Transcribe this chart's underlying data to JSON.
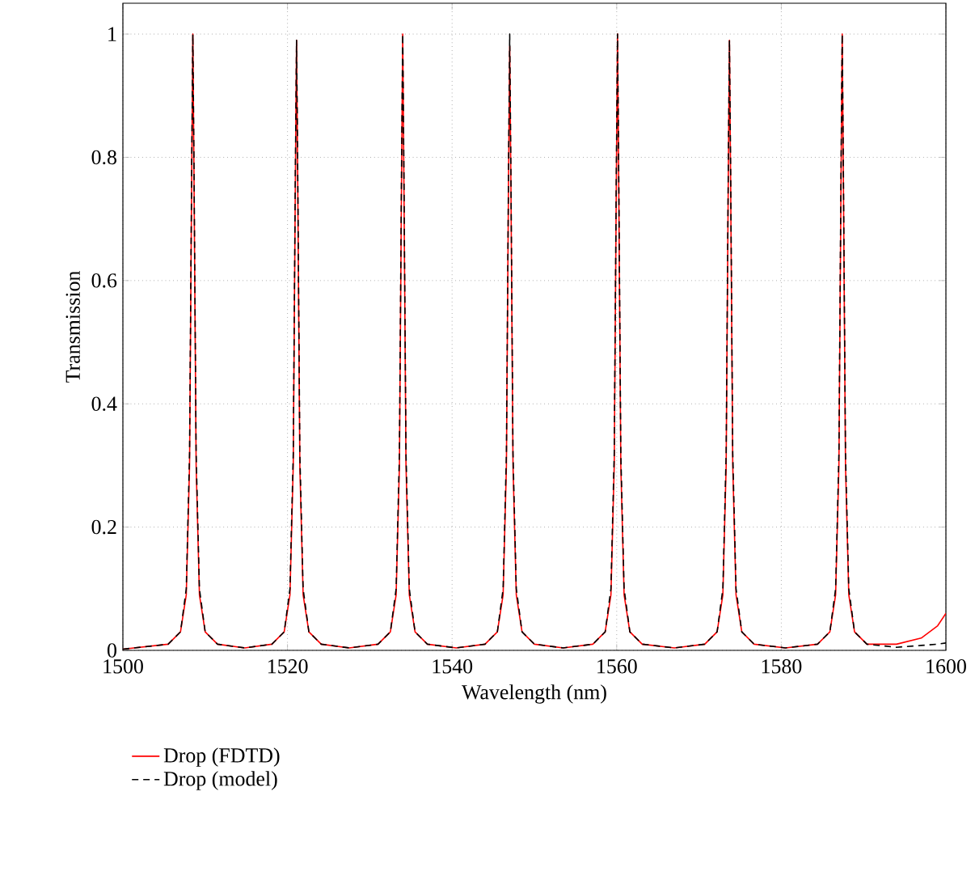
{
  "chart_data": {
    "type": "line",
    "xlabel": "Wavelength (nm)",
    "ylabel": "Transmission",
    "xlim": [
      1500,
      1600
    ],
    "ylim": [
      0,
      1.05
    ],
    "xticks": [
      1500,
      1520,
      1540,
      1560,
      1580,
      1600
    ],
    "yticks": [
      0,
      0.2,
      0.4,
      0.6,
      0.8,
      1
    ],
    "grid": true,
    "legend": "bottom left",
    "marker": "none",
    "x": [
      1500,
      1505.5,
      1507,
      1507.7,
      1508.1,
      1508.35,
      1508.5,
      1508.65,
      1508.9,
      1509.3,
      1510,
      1511.5,
      1514.8,
      1518.1,
      1519.6,
      1520.3,
      1520.7,
      1520.95,
      1521.1,
      1521.25,
      1521.5,
      1521.9,
      1522.6,
      1524.1,
      1527.5,
      1531,
      1532.5,
      1533.2,
      1533.6,
      1533.85,
      1534,
      1534.15,
      1534.4,
      1534.8,
      1535.5,
      1537,
      1540.5,
      1544,
      1545.5,
      1546.2,
      1546.6,
      1546.85,
      1547,
      1547.15,
      1547.4,
      1547.8,
      1548.5,
      1550,
      1553.5,
      1557.1,
      1558.6,
      1559.3,
      1559.7,
      1559.95,
      1560.1,
      1560.25,
      1560.5,
      1560.9,
      1561.6,
      1563.1,
      1567,
      1570.7,
      1572.2,
      1572.9,
      1573.3,
      1573.55,
      1573.7,
      1573.85,
      1574.1,
      1574.5,
      1575.2,
      1576.7,
      1580.5,
      1584.4,
      1585.9,
      1586.6,
      1587,
      1587.25,
      1587.4,
      1587.55,
      1587.8,
      1588.2,
      1588.9,
      1590.4,
      1594,
      1597,
      1599,
      1600
    ],
    "series": [
      {
        "name": "Drop (FDTD)",
        "color": "#ff0000",
        "line_style": "solid",
        "values": [
          0.002,
          0.01,
          0.03,
          0.09,
          0.3,
          0.75,
          1.0,
          0.75,
          0.3,
          0.09,
          0.03,
          0.01,
          0.004,
          0.01,
          0.03,
          0.09,
          0.3,
          0.75,
          0.99,
          0.75,
          0.3,
          0.09,
          0.03,
          0.01,
          0.004,
          0.01,
          0.03,
          0.09,
          0.3,
          0.75,
          1.0,
          0.75,
          0.3,
          0.09,
          0.03,
          0.01,
          0.004,
          0.01,
          0.03,
          0.09,
          0.3,
          0.75,
          0.98,
          0.75,
          0.3,
          0.09,
          0.03,
          0.01,
          0.004,
          0.01,
          0.03,
          0.09,
          0.3,
          0.75,
          1.0,
          0.75,
          0.3,
          0.09,
          0.03,
          0.01,
          0.004,
          0.01,
          0.03,
          0.09,
          0.3,
          0.75,
          0.99,
          0.75,
          0.3,
          0.09,
          0.03,
          0.01,
          0.004,
          0.01,
          0.03,
          0.09,
          0.3,
          0.75,
          1.0,
          0.75,
          0.3,
          0.09,
          0.03,
          0.01,
          0.01,
          0.02,
          0.04,
          0.06
        ]
      },
      {
        "name": "Drop (model)",
        "color": "#000000",
        "line_style": "dashed",
        "values": [
          0.002,
          0.01,
          0.03,
          0.1,
          0.32,
          0.77,
          1.0,
          0.77,
          0.32,
          0.1,
          0.03,
          0.01,
          0.004,
          0.01,
          0.03,
          0.1,
          0.32,
          0.77,
          0.99,
          0.77,
          0.32,
          0.1,
          0.03,
          0.01,
          0.004,
          0.01,
          0.03,
          0.1,
          0.32,
          0.77,
          1.0,
          0.77,
          0.32,
          0.1,
          0.03,
          0.01,
          0.004,
          0.01,
          0.03,
          0.1,
          0.32,
          0.77,
          1.0,
          0.77,
          0.32,
          0.1,
          0.03,
          0.01,
          0.004,
          0.01,
          0.03,
          0.1,
          0.32,
          0.77,
          1.0,
          0.77,
          0.32,
          0.1,
          0.03,
          0.01,
          0.004,
          0.01,
          0.03,
          0.1,
          0.32,
          0.77,
          0.99,
          0.77,
          0.32,
          0.1,
          0.03,
          0.01,
          0.004,
          0.01,
          0.03,
          0.1,
          0.32,
          0.77,
          1.0,
          0.77,
          0.32,
          0.1,
          0.03,
          0.01,
          0.005,
          0.008,
          0.01,
          0.012
        ]
      }
    ]
  }
}
